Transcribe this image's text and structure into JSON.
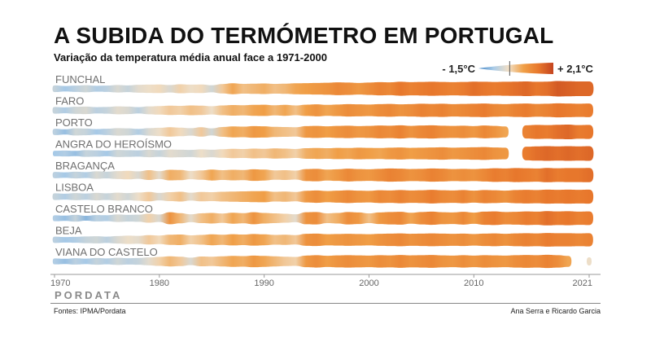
{
  "header": {
    "title": "A SUBIDA DO TERMÓMETRO EM PORTUGAL",
    "subtitle": "Variação da temperatura média anual face a 1971-2000"
  },
  "legend": {
    "min_label": "- 1,5°C",
    "max_label": "+ 2,1°C",
    "colors": [
      "#3f83c4",
      "#a9cbe8",
      "#f1dfc6",
      "#f0a048",
      "#e8782c",
      "#c4441f"
    ]
  },
  "footer": {
    "brand": "PORDATA",
    "source": "Fontes: IPMA/Pordata",
    "credit": "Ana Serra e Ricardo Garcia"
  },
  "chart_data": {
    "type": "heatmap",
    "title": "A SUBIDA DO TERMÓMETRO EM PORTUGAL",
    "subtitle": "Variação da temperatura média anual face a 1971-2000",
    "unit": "°C",
    "scale": [
      -1.5,
      2.1
    ],
    "x_start": 1970,
    "x_end": 2021,
    "x_ticks": [
      1970,
      1980,
      1990,
      2000,
      2010,
      2021
    ],
    "series": [
      {
        "name": "FUNCHAL",
        "values": [
          -0.5,
          -0.8,
          -0.6,
          -0.4,
          -0.7,
          -0.6,
          -0.3,
          -0.5,
          -0.2,
          -0.1,
          0.0,
          -0.3,
          0.1,
          -0.1,
          0.0,
          -0.4,
          0.2,
          0.6,
          0.3,
          0.4,
          0.5,
          0.3,
          0.4,
          0.6,
          0.7,
          0.8,
          0.9,
          1.1,
          1.0,
          0.8,
          1.0,
          1.2,
          1.1,
          1.4,
          1.2,
          1.3,
          1.4,
          1.3,
          1.2,
          1.3,
          1.5,
          1.4,
          1.3,
          1.4,
          1.5,
          1.6,
          1.4,
          1.5,
          1.8,
          1.7,
          1.6,
          1.6
        ]
      },
      {
        "name": "FARO",
        "values": [
          -0.5,
          -0.7,
          -0.4,
          -0.3,
          -0.6,
          -0.5,
          -0.2,
          -0.3,
          -0.6,
          -0.2,
          0.0,
          0.2,
          0.1,
          0.3,
          0.2,
          -0.1,
          0.3,
          0.5,
          0.4,
          0.6,
          0.7,
          0.4,
          0.6,
          0.3,
          0.7,
          0.9,
          0.6,
          0.8,
          1.0,
          0.9,
          0.8,
          1.0,
          1.1,
          0.9,
          1.0,
          1.2,
          1.1,
          1.2,
          1.0,
          1.1,
          1.2,
          1.3,
          1.1,
          1.0,
          1.2,
          1.3,
          1.1,
          1.2,
          1.4,
          1.3,
          1.2,
          1.3
        ]
      },
      {
        "name": "PORTO",
        "values": [
          -0.6,
          -0.9,
          -0.4,
          -0.5,
          -0.8,
          -0.6,
          -0.3,
          -0.4,
          -0.7,
          -0.3,
          -0.1,
          0.2,
          0.0,
          -0.3,
          0.2,
          -0.4,
          0.3,
          0.6,
          0.5,
          0.8,
          0.7,
          0.4,
          0.3,
          0.2,
          0.8,
          0.9,
          0.7,
          0.9,
          1.0,
          0.8,
          0.9,
          1.1,
          1.0,
          1.2,
          0.9,
          1.1,
          1.2,
          1.0,
          0.9,
          1.0,
          0.8,
          1.1,
          0.9,
          0.6,
          null,
          1.2,
          1.4,
          1.3,
          1.5,
          1.6,
          1.3,
          1.4
        ]
      },
      {
        "name": "ANGRA DO HEROÍSMO",
        "values": [
          -0.8,
          -0.7,
          -0.9,
          -0.5,
          -0.6,
          -0.8,
          -0.4,
          -0.5,
          -0.6,
          -0.3,
          -0.5,
          -0.2,
          -0.3,
          -0.4,
          -0.1,
          -0.3,
          0.0,
          0.2,
          0.1,
          0.3,
          0.2,
          0.4,
          0.3,
          0.1,
          0.5,
          0.6,
          0.5,
          0.7,
          0.6,
          0.8,
          0.7,
          0.6,
          0.8,
          0.9,
          0.7,
          0.8,
          0.9,
          1.0,
          0.8,
          0.9,
          1.0,
          1.1,
          0.9,
          0.8,
          null,
          1.3,
          1.5,
          1.6,
          1.5,
          1.6,
          1.5,
          1.6
        ]
      },
      {
        "name": "BRAGANÇA",
        "values": [
          -0.6,
          -0.8,
          -0.5,
          -0.7,
          -0.3,
          -0.5,
          -0.2,
          0.0,
          -0.3,
          0.3,
          -0.2,
          0.5,
          0.4,
          -0.1,
          0.2,
          0.6,
          0.3,
          0.5,
          0.4,
          0.8,
          0.6,
          0.2,
          0.3,
          0.1,
          0.9,
          1.0,
          0.6,
          0.8,
          1.1,
          0.9,
          0.8,
          1.0,
          1.2,
          1.1,
          0.9,
          1.0,
          1.2,
          1.1,
          0.9,
          1.0,
          0.9,
          1.1,
          1.3,
          1.2,
          1.4,
          1.3,
          1.2,
          1.5,
          1.3,
          1.4,
          1.4,
          1.5
        ]
      },
      {
        "name": "LISBOA",
        "values": [
          -0.5,
          -0.7,
          -0.4,
          -0.6,
          -0.3,
          -0.5,
          -0.2,
          -0.4,
          -0.1,
          0.2,
          -0.3,
          0.1,
          0.3,
          -0.2,
          0.2,
          0.1,
          0.3,
          0.4,
          0.5,
          0.6,
          0.7,
          0.3,
          0.4,
          0.2,
          0.8,
          1.0,
          0.7,
          0.9,
          1.1,
          0.9,
          0.8,
          1.1,
          1.0,
          1.2,
          1.0,
          1.1,
          1.3,
          1.1,
          1.0,
          1.2,
          0.9,
          1.2,
          1.1,
          0.9,
          1.2,
          1.3,
          1.2,
          1.4,
          1.3,
          1.4,
          1.3,
          1.4
        ]
      },
      {
        "name": "CASTELO BRANCO",
        "values": [
          -0.7,
          -0.9,
          -0.5,
          -1.0,
          -0.6,
          -0.7,
          -0.3,
          -0.5,
          -0.4,
          0.1,
          -0.3,
          0.9,
          0.4,
          -0.2,
          0.3,
          0.5,
          0.2,
          0.6,
          0.4,
          0.9,
          0.5,
          0.3,
          0.1,
          -0.2,
          0.9,
          1.0,
          0.3,
          0.5,
          1.0,
          0.8,
          0.3,
          0.8,
          1.0,
          1.1,
          0.6,
          1.0,
          1.2,
          0.9,
          0.8,
          1.1,
          0.7,
          1.2,
          1.3,
          1.0,
          1.1,
          1.3,
          1.2,
          1.5,
          1.3,
          1.4,
          1.2,
          1.3
        ]
      },
      {
        "name": "BEJA",
        "values": [
          -0.6,
          -0.8,
          -0.7,
          -0.5,
          -0.4,
          -0.6,
          -0.3,
          -0.1,
          -0.2,
          0.2,
          0.0,
          0.4,
          0.5,
          0.1,
          0.3,
          0.6,
          0.4,
          0.7,
          0.5,
          0.8,
          0.6,
          0.3,
          0.4,
          0.2,
          0.9,
          1.0,
          0.7,
          0.8,
          0.9,
          0.8,
          0.7,
          0.9,
          1.0,
          1.1,
          0.9,
          1.0,
          1.1,
          1.0,
          0.9,
          1.0,
          0.8,
          1.0,
          1.1,
          0.9,
          1.1,
          1.2,
          1.1,
          1.3,
          1.2,
          1.2,
          1.1,
          1.2
        ]
      },
      {
        "name": "VIANA DO CASTELO",
        "values": [
          -0.7,
          -0.9,
          -0.6,
          -0.8,
          -0.5,
          -0.7,
          -0.4,
          -0.6,
          -0.5,
          -0.2,
          0.1,
          0.4,
          0.2,
          -0.3,
          0.3,
          0.2,
          0.4,
          0.6,
          0.5,
          0.8,
          0.6,
          0.4,
          0.2,
          0.1,
          0.8,
          1.0,
          0.7,
          0.9,
          1.0,
          0.9,
          0.8,
          1.0,
          0.9,
          1.1,
          0.9,
          1.0,
          1.1,
          0.9,
          0.8,
          1.0,
          0.8,
          1.0,
          0.9,
          0.8,
          1.0,
          1.1,
          1.0,
          1.2,
          1.0,
          0.6,
          null,
          -0.1
        ]
      }
    ]
  }
}
